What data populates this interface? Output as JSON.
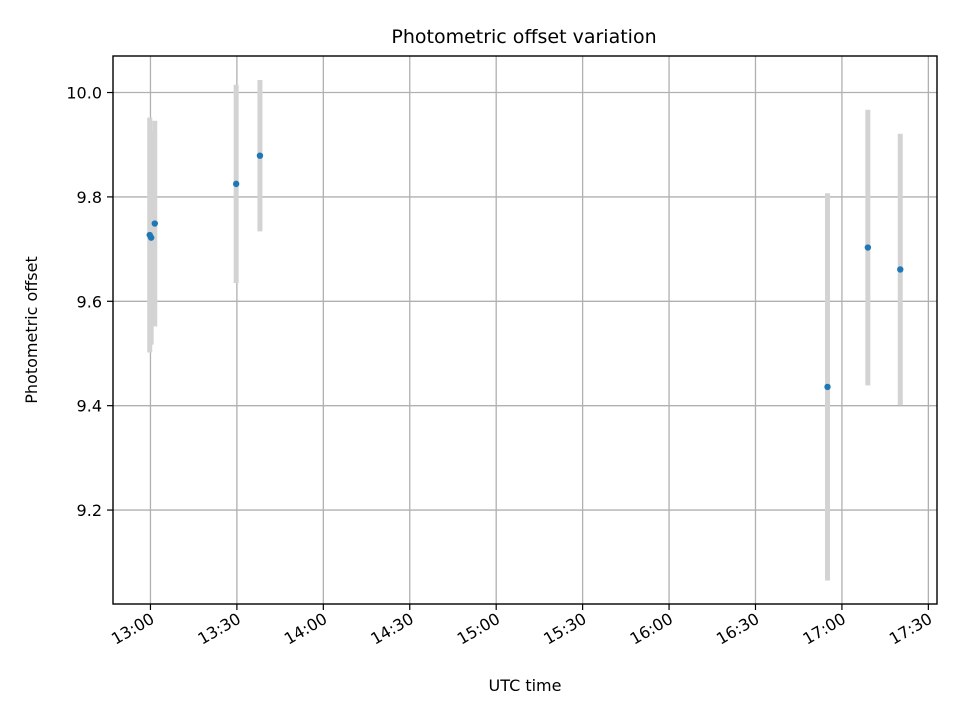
{
  "chart_data": {
    "type": "scatter",
    "title": "Photometric offset variation",
    "xlabel": "UTC time",
    "ylabel": "Photometric offset",
    "x_ticks": [
      "13:00",
      "13:30",
      "14:00",
      "14:30",
      "15:00",
      "15:30",
      "16:00",
      "16:30",
      "17:00",
      "17:30"
    ],
    "y_ticks": [
      9.2,
      9.4,
      9.6,
      9.8,
      10.0
    ],
    "y_tick_labels": [
      "9.2",
      "9.4",
      "9.6",
      "9.8",
      "10.0"
    ],
    "xlim": [
      "12:47",
      "17:33"
    ],
    "ylim": [
      9.02,
      10.07
    ],
    "grid": true,
    "colors": {
      "points": "#1f77b4",
      "errorbars": "#d3d3d3",
      "grid": "#b0b0b0"
    },
    "points": [
      {
        "x": "12:59:45",
        "y": 9.727,
        "err": 0.225
      },
      {
        "x": "13:00:15",
        "y": 9.722,
        "err": 0.205
      },
      {
        "x": "13:01:30",
        "y": 9.749,
        "err": 0.197
      },
      {
        "x": "13:29:45",
        "y": 9.825,
        "err": 0.19
      },
      {
        "x": "13:38:00",
        "y": 9.879,
        "err": 0.145
      },
      {
        "x": "16:55:00",
        "y": 9.436,
        "err": 0.371
      },
      {
        "x": "17:09:00",
        "y": 9.703,
        "err": 0.264
      },
      {
        "x": "17:20:15",
        "y": 9.661,
        "err": 0.26
      }
    ]
  }
}
